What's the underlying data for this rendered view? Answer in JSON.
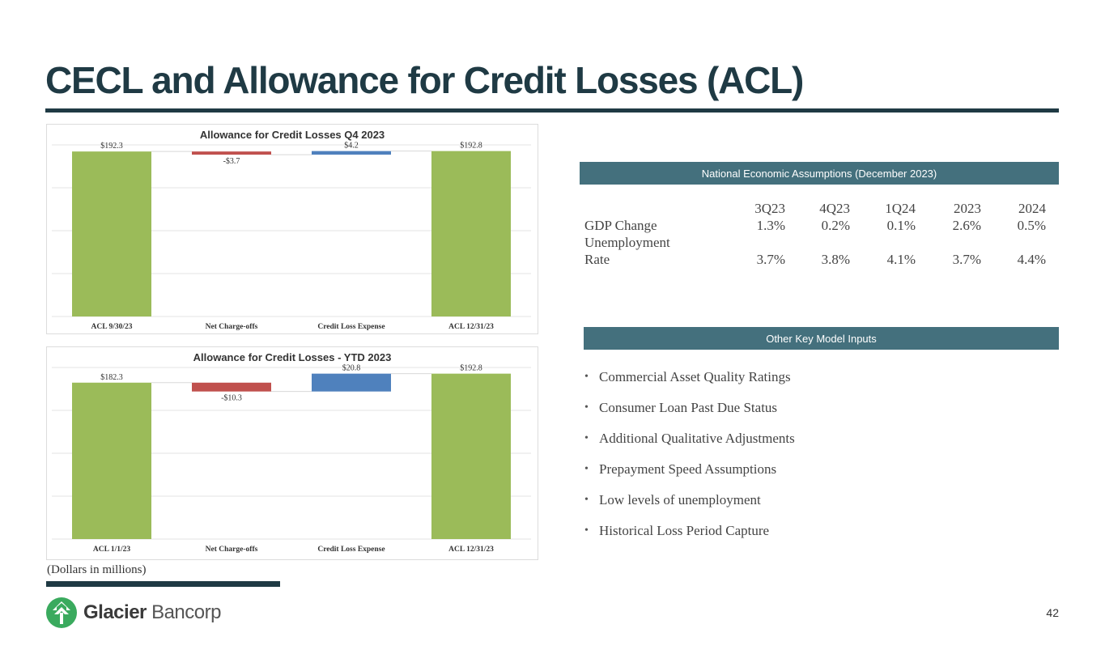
{
  "page": {
    "title": "CECL and Allowance for Credit Losses (ACL)",
    "footnote": "(Dollars in millions)",
    "page_number": "42"
  },
  "logo": {
    "brand_bold": "Glacier",
    "brand_light": "Bancorp",
    "color": "#3aaa5e"
  },
  "colors": {
    "total": "#9bbb59",
    "decrease": "#c0504d",
    "increase": "#4f81bd",
    "header": "#44707d",
    "dark": "#1f3a44"
  },
  "chart_data": [
    {
      "type": "bar",
      "subtype": "waterfall",
      "title": "Allowance for Credit Losses Q4 2023",
      "categories": [
        "ACL 9/30/23",
        "Net Charge-offs",
        "Credit Loss Expense",
        "ACL 12/31/23"
      ],
      "values": [
        192.3,
        -3.7,
        4.2,
        192.8
      ],
      "data_labels": [
        "$192.3",
        "-$3.7",
        "$4.2",
        "$192.8"
      ],
      "kinds": [
        "total",
        "decrease",
        "increase",
        "total"
      ],
      "ylim": [
        0,
        200
      ],
      "grid": true,
      "xlabel": "",
      "ylabel": ""
    },
    {
      "type": "bar",
      "subtype": "waterfall",
      "title": "Allowance for Credit Losses - YTD 2023",
      "categories": [
        "ACL 1/1/23",
        "Net Charge-offs",
        "Credit Loss Expense",
        "ACL 12/31/23"
      ],
      "values": [
        182.3,
        -10.3,
        20.8,
        192.8
      ],
      "data_labels": [
        "$182.3",
        "-$10.3",
        "$20.8",
        "$192.8"
      ],
      "kinds": [
        "total",
        "decrease",
        "increase",
        "total"
      ],
      "ylim": [
        0,
        200
      ],
      "grid": true,
      "xlabel": "",
      "ylabel": ""
    }
  ],
  "econ": {
    "header": "National Economic Assumptions (December 2023)",
    "columns": [
      "3Q23",
      "4Q23",
      "1Q24",
      "2023",
      "2024"
    ],
    "rows": [
      {
        "label": "GDP Change",
        "values": [
          "1.3%",
          "0.2%",
          "0.1%",
          "2.6%",
          "0.5%"
        ]
      },
      {
        "label_line1": "Unemployment",
        "label_line2": "Rate",
        "values": [
          "3.7%",
          "3.8%",
          "4.1%",
          "3.7%",
          "4.4%"
        ]
      }
    ]
  },
  "inputs": {
    "header": "Other Key Model Inputs",
    "items": [
      "Commercial Asset Quality Ratings",
      "Consumer Loan Past Due Status",
      "Additional Qualitative Adjustments",
      "Prepayment Speed Assumptions",
      "Low levels of unemployment",
      "Historical Loss Period Capture"
    ]
  }
}
